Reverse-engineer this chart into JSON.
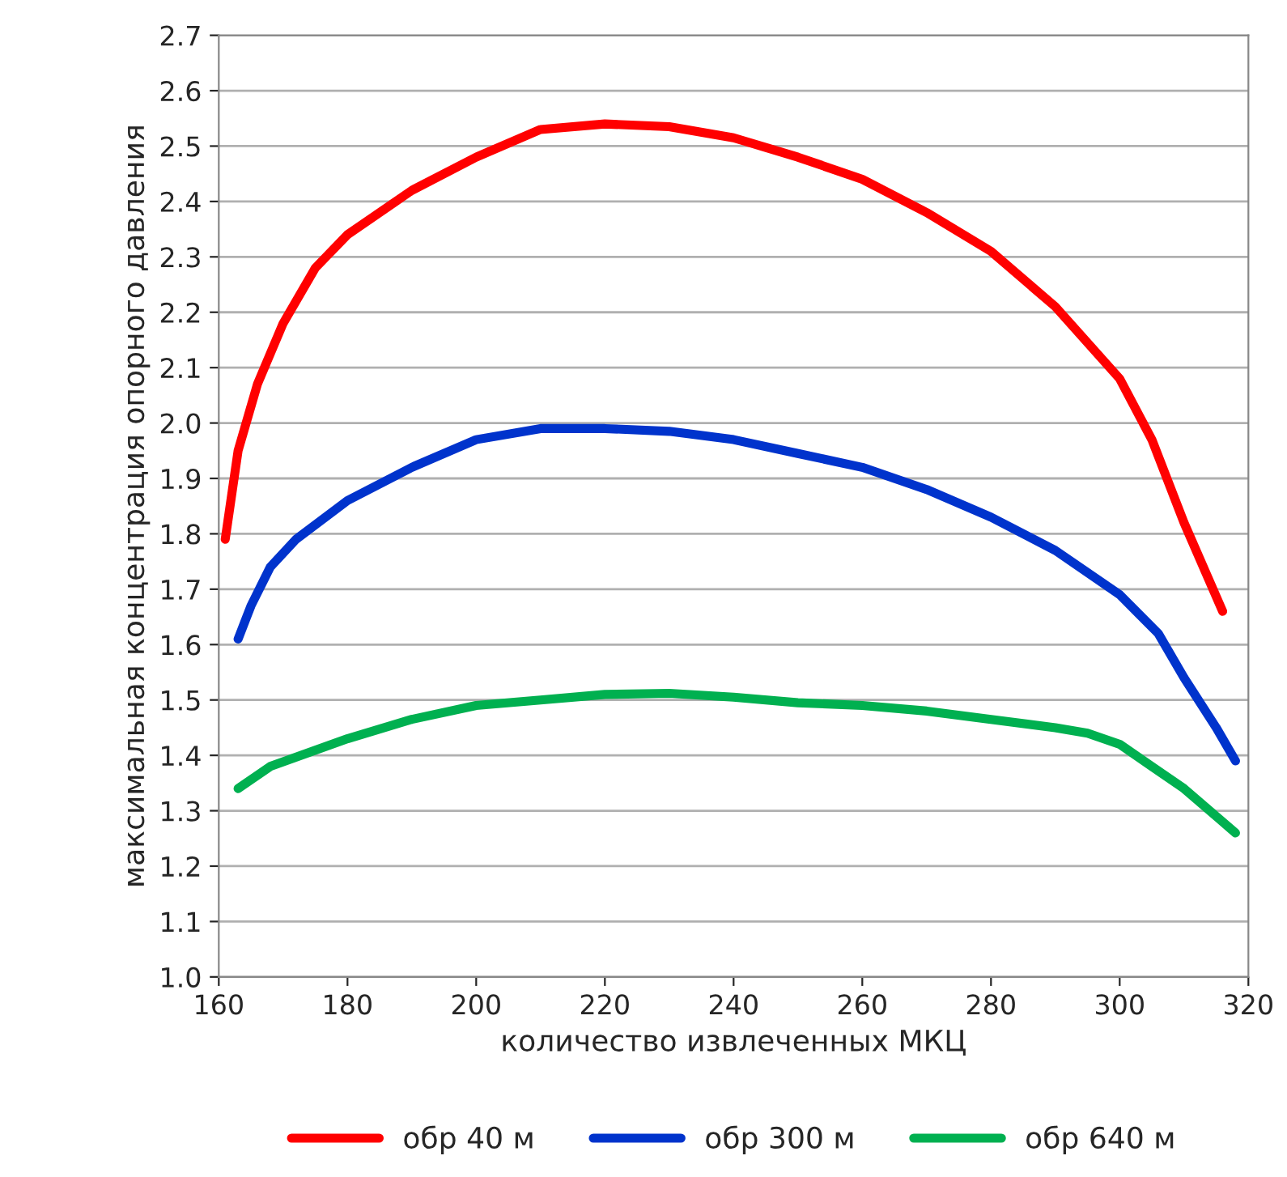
{
  "chart_data": {
    "type": "line",
    "xlabel": "количество извлеченных МКЦ",
    "ylabel": "максимальная концентрация опорного давления",
    "xlim": [
      160,
      320
    ],
    "xticks": [
      160,
      180,
      200,
      220,
      240,
      260,
      280,
      300,
      320
    ],
    "ylim": [
      1.0,
      2.7
    ],
    "yticks": [
      {
        "value": 1.0,
        "label": "1.0"
      },
      {
        "value": 1.1,
        "label": "1.1"
      },
      {
        "value": 1.2,
        "label": "1.2"
      },
      {
        "value": 1.3,
        "label": "1.3"
      },
      {
        "value": 1.4,
        "label": "1.4"
      },
      {
        "value": 1.5,
        "label": "1.5"
      },
      {
        "value": 1.6,
        "label": "1.6"
      },
      {
        "value": 1.7,
        "label": "1.7"
      },
      {
        "value": 1.8,
        "label": "1.8"
      },
      {
        "value": 1.9,
        "label": "1.9"
      },
      {
        "value": 2.0,
        "label": "2.0"
      },
      {
        "value": 2.1,
        "label": "2.1"
      },
      {
        "value": 2.2,
        "label": "2.2"
      },
      {
        "value": 2.3,
        "label": "2.3"
      },
      {
        "value": 2.4,
        "label": "2.4"
      },
      {
        "value": 2.5,
        "label": "2.5"
      },
      {
        "value": 2.6,
        "label": "2.6"
      },
      {
        "value": 2.7,
        "label": "2.7"
      }
    ],
    "grid": "y",
    "legend": "bottom",
    "marker": "none",
    "line_style": "solid",
    "series": [
      {
        "name": "обр 40 м",
        "color": "#ff0000",
        "x": [
          161,
          163,
          166,
          170,
          175,
          180,
          190,
          200,
          210,
          220,
          230,
          240,
          250,
          260,
          270,
          280,
          290,
          300,
          305,
          310,
          316
        ],
        "values": [
          1.79,
          1.95,
          2.07,
          2.18,
          2.28,
          2.34,
          2.42,
          2.48,
          2.53,
          2.54,
          2.535,
          2.515,
          2.48,
          2.44,
          2.38,
          2.31,
          2.21,
          2.08,
          1.97,
          1.82,
          1.66
        ]
      },
      {
        "name": "обр 300 м",
        "color": "#0033cc",
        "x": [
          163,
          165,
          168,
          172,
          180,
          190,
          200,
          210,
          220,
          230,
          240,
          250,
          260,
          270,
          280,
          290,
          300,
          306,
          310,
          315,
          318
        ],
        "values": [
          1.61,
          1.67,
          1.74,
          1.79,
          1.86,
          1.92,
          1.97,
          1.99,
          1.99,
          1.985,
          1.97,
          1.945,
          1.92,
          1.88,
          1.83,
          1.77,
          1.69,
          1.62,
          1.54,
          1.45,
          1.39
        ]
      },
      {
        "name": "обр 640 м",
        "color": "#00b050",
        "x": [
          163,
          168,
          180,
          190,
          200,
          210,
          220,
          230,
          240,
          250,
          260,
          270,
          280,
          290,
          295,
          300,
          305,
          310,
          318
        ],
        "values": [
          1.34,
          1.38,
          1.43,
          1.465,
          1.49,
          1.5,
          1.51,
          1.512,
          1.505,
          1.495,
          1.49,
          1.48,
          1.465,
          1.45,
          1.44,
          1.42,
          1.38,
          1.34,
          1.26
        ]
      }
    ]
  }
}
